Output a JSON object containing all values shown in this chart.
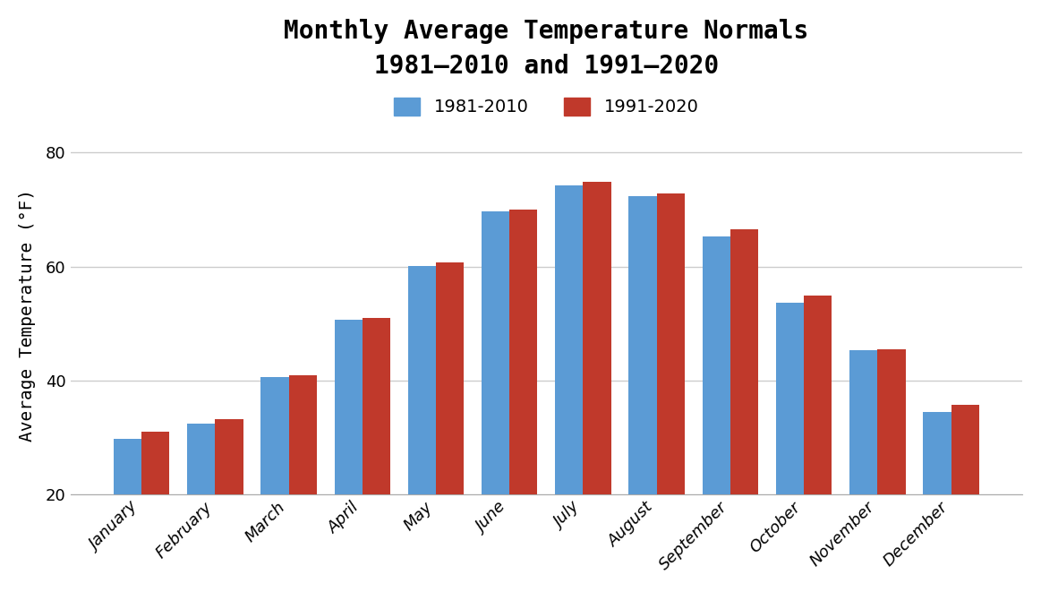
{
  "title": "Monthly Average Temperature Normals\n1981–2010 and 1991–2020",
  "months": [
    "January",
    "February",
    "March",
    "April",
    "May",
    "June",
    "July",
    "August",
    "September",
    "October",
    "November",
    "December"
  ],
  "values_1981_2010": [
    29.8,
    32.4,
    40.7,
    50.7,
    60.1,
    69.7,
    74.2,
    72.4,
    65.3,
    53.7,
    45.4,
    34.5
  ],
  "values_1991_2020": [
    31.0,
    33.3,
    41.0,
    51.0,
    60.7,
    70.0,
    74.8,
    72.8,
    66.5,
    55.0,
    45.5,
    35.7
  ],
  "color_1981": "#5B9BD5",
  "color_1991": "#C0392B",
  "legend_1981": "1981-2010",
  "legend_1991": "1991-2020",
  "ylabel": "Average Temperature (°F)",
  "ylim_min": 20,
  "ylim_max": 83,
  "yticks": [
    20,
    40,
    60,
    80
  ],
  "bar_width": 0.38,
  "background_color": "#ffffff",
  "grid_color": "#cccccc",
  "title_fontsize": 20,
  "axis_label_fontsize": 14,
  "tick_fontsize": 13,
  "legend_fontsize": 14
}
